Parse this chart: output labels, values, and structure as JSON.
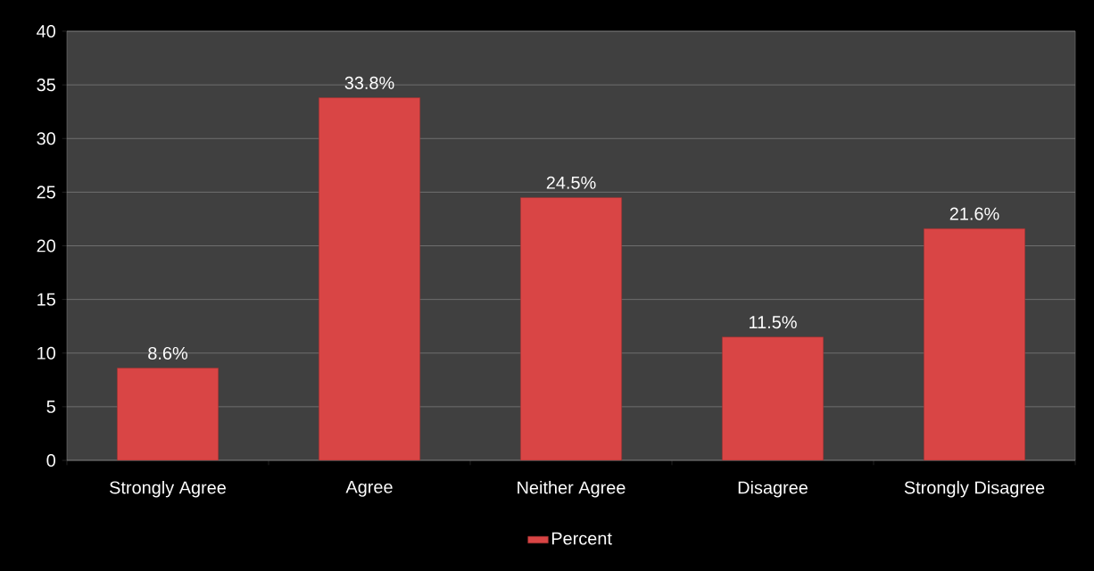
{
  "chart_data": {
    "type": "bar",
    "categories": [
      "Strongly Agree",
      "Agree",
      "Neither Agree",
      "Disagree",
      "Strongly Disagree"
    ],
    "series": [
      {
        "name": "Percent",
        "color": "#d94545",
        "values": [
          8.6,
          33.8,
          24.5,
          11.5,
          21.6
        ],
        "value_labels": [
          "8.6%",
          "33.8%",
          "24.5%",
          "11.5%",
          "21.6%"
        ]
      }
    ],
    "ylim": [
      0,
      40
    ],
    "yticks": [
      0,
      5,
      10,
      15,
      20,
      25,
      30,
      35,
      40
    ],
    "grid": "y",
    "legend": "bottom"
  }
}
